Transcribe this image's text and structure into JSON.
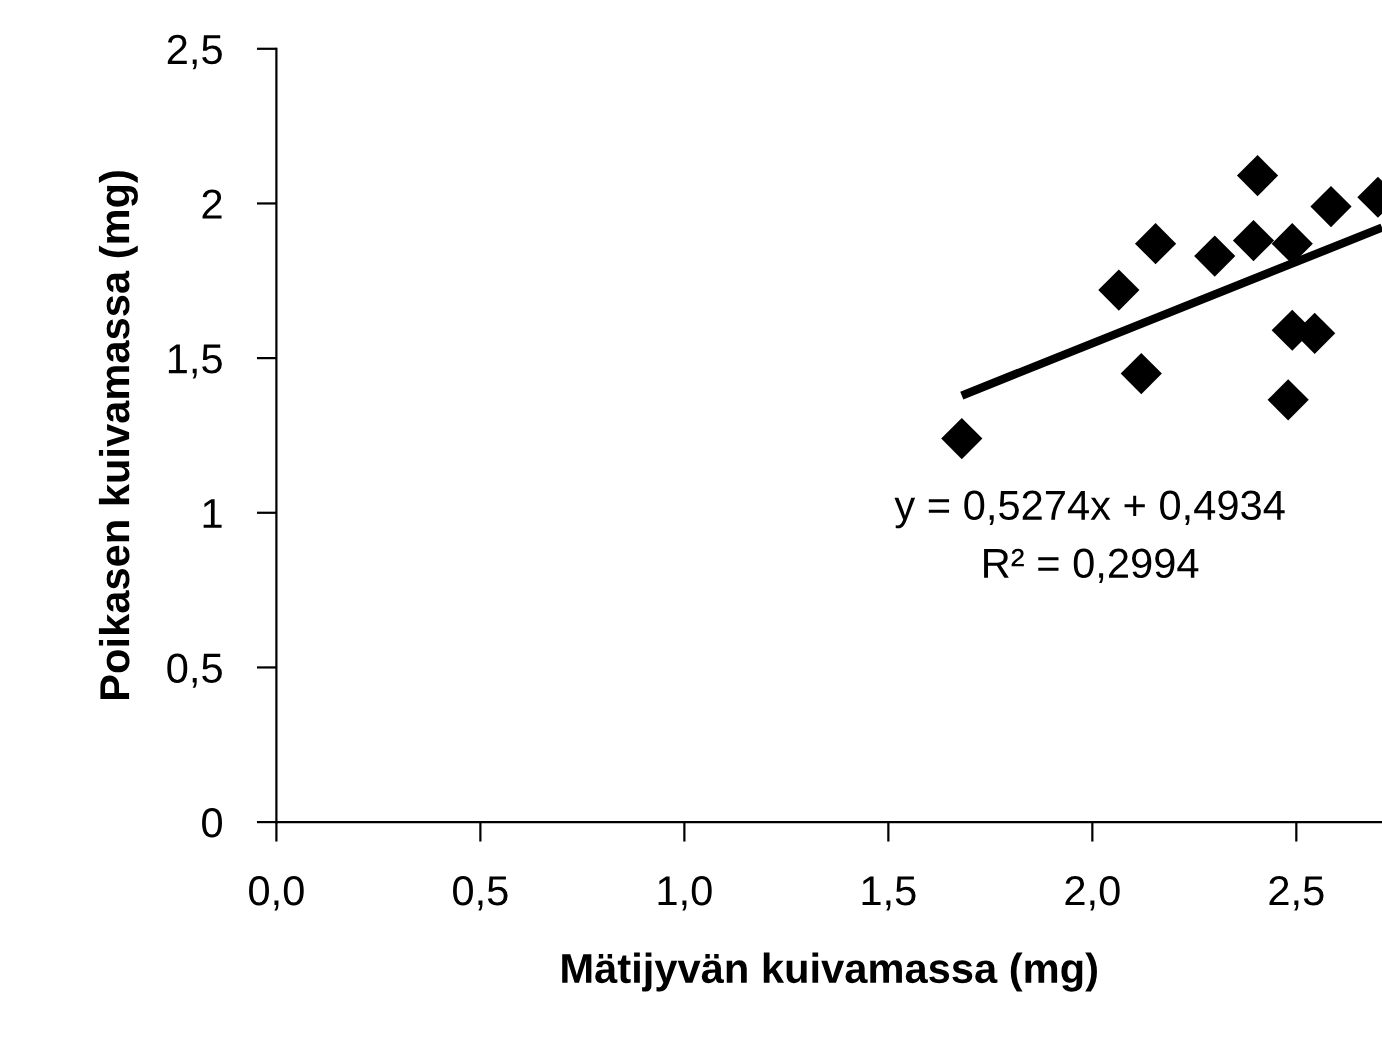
{
  "chart_data": {
    "type": "scatter",
    "xlabel": "Mätijyvän kuivamassa (mg)",
    "ylabel": "Poikasen kuivamassa (mg)",
    "x": [
      1.68,
      2.065,
      2.155,
      2.12,
      2.3,
      2.405,
      2.395,
      2.49,
      2.49,
      2.545,
      2.48,
      2.585,
      2.7
    ],
    "series": [
      {
        "color": "#000000",
        "marker": "diamond",
        "values": [
          1.24,
          1.72,
          1.87,
          1.45,
          1.83,
          2.09,
          1.88,
          1.87,
          1.59,
          1.58,
          1.365,
          1.99,
          2.02
        ]
      },
      {
        "type": "line",
        "color": "#000000",
        "marker": "none",
        "x": [
          1.68,
          2.71
        ],
        "values": [
          1.379,
          1.922
        ]
      }
    ],
    "annotations": [
      "y = 0,5274x + 0,4934",
      "R² = 0,2994"
    ],
    "xlim": [
      0,
      2.71
    ],
    "ylim": [
      0,
      2.5
    ],
    "xticks": [
      {
        "value": 0,
        "label": "0,0"
      },
      {
        "value": 0.5,
        "label": "0,5"
      },
      {
        "value": 1,
        "label": "1,0"
      },
      {
        "value": 1.5,
        "label": "1,5"
      },
      {
        "value": 2,
        "label": "2,0"
      },
      {
        "value": 2.5,
        "label": "2,5"
      }
    ],
    "yticks": [
      0,
      {
        "value": 0.5,
        "label": "0,5"
      },
      1,
      {
        "value": 1.5,
        "label": "1,5"
      },
      2,
      {
        "value": 2.5,
        "label": "2,5"
      }
    ],
    "grid": false,
    "legend": false
  }
}
